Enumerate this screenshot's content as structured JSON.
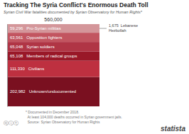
{
  "chart_data": {
    "type": "bar",
    "stacked": true,
    "title": "Tracking The Syria Conflict's Enormous Death Toll",
    "subtitle": "Syrian Civil War fatalities documented by Syrian Observatory for Human Rights*",
    "categories": [
      null
    ],
    "series": [
      {
        "name": "Pro-Syrian militias",
        "color": "#d4969a",
        "values": [
          59296
        ],
        "value_labels": [
          "59,296"
        ]
      },
      {
        "name": "Opposition fighters",
        "color": "#c25560",
        "values": [
          63561
        ],
        "value_labels": [
          "63,561"
        ]
      },
      {
        "name": "Syrian soldiers",
        "color": "#b03545",
        "values": [
          65048
        ],
        "value_labels": [
          "65,048"
        ]
      },
      {
        "name": "Members of radical groups",
        "color": "#991828",
        "values": [
          65108
        ],
        "value_labels": [
          "65,108"
        ]
      },
      {
        "name": "Civilians",
        "color": "#be3040",
        "values": [
          111330
        ],
        "value_labels": [
          "111,330"
        ]
      },
      {
        "name": "Unknown/undocumented",
        "color": "#7a1020",
        "values": [
          202982
        ],
        "value_labels": [
          "202,982"
        ]
      }
    ],
    "ylim": [
      0,
      567325
    ],
    "data_labels": true,
    "tick_labels": false,
    "annotations": [
      {
        "text": "560,000"
      },
      {
        "text": "1,675  Lebanese\nHezbollah"
      },
      {
        "text": "* Documented in December 2018.\n  At least 104,000 deaths occurred in Syrian government jails.\n  Source: Syrian Observatory for Human Rights"
      },
      {
        "text": "ⓒⓘⓣ"
      },
      {
        "text": "statista"
      }
    ]
  }
}
